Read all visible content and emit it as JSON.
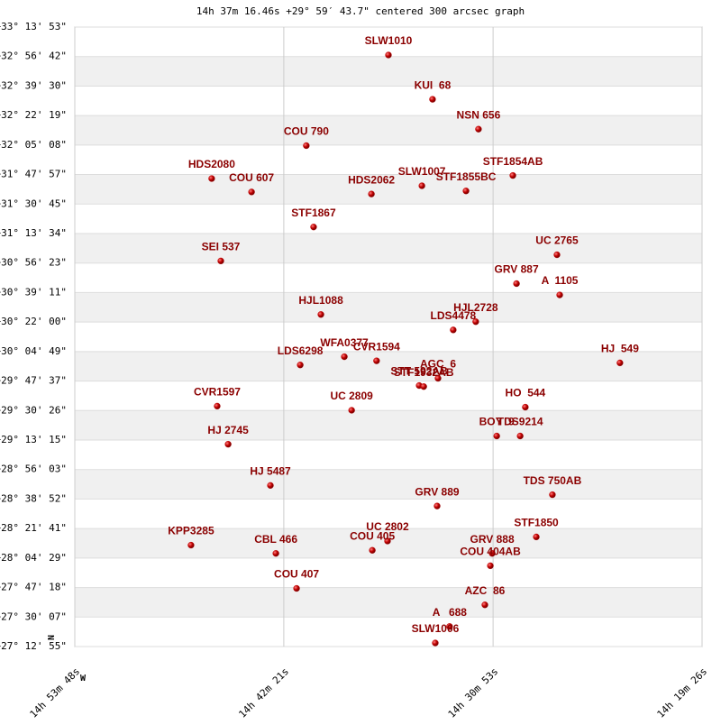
{
  "chart_data": {
    "type": "scatter",
    "title": "14h 37m 16.46s +29° 59′ 43.7\" centered 300 arcsec graph",
    "north_label": "N",
    "west_label": "W",
    "labels": [
      "SLW1010",
      "KUI  68",
      "NSN 656",
      "COU 790",
      "HDS2080",
      "COU 607",
      "SLW1007",
      "STF1855BC",
      "STF1854AB",
      "HDS2062",
      "STF1867",
      "SEI 537",
      "UC 2765",
      "GRV 887",
      "A  1105",
      "HJL1088",
      "HJL2728",
      "LDS4478",
      "LDS6298",
      "WFA0377",
      "CVR1594",
      "HJ  549",
      "AGC  6",
      "STT 592AB",
      "STF1932AB",
      "UC 2809",
      "CVR1597",
      "HO  544",
      "BOY  9",
      "TDS9214",
      "HJ 2745",
      "HJ 5487",
      "TDS 750AB",
      "GRV 889",
      "KPP3285",
      "CBL 466",
      "UC 2802",
      "COU 405",
      "STF1850",
      "GRV 888",
      "COU 404AB",
      "COU 407",
      "AZC  86",
      "A   688",
      "SLW1006"
    ],
    "x": [
      2197,
      2052,
      1901,
      2467,
      2778,
      2647,
      2087,
      1942,
      1788,
      2253,
      2443,
      2748,
      1643,
      1776,
      1634,
      2419,
      1910,
      1984,
      2487,
      2342,
      2236,
      1436,
      2034,
      2096,
      2081,
      2318,
      2760,
      1747,
      1841,
      1764,
      2724,
      2585,
      1658,
      2037,
      2846,
      2567,
      2200,
      2250,
      1711,
      1856,
      1862,
      2499,
      1880,
      1996,
      2043
    ],
    "y": [
      32.96,
      32.53,
      32.24,
      32.08,
      31.76,
      31.63,
      31.69,
      31.64,
      31.79,
      31.61,
      31.29,
      30.96,
      31.02,
      30.74,
      30.63,
      30.44,
      30.37,
      30.29,
      29.95,
      30.03,
      29.99,
      29.97,
      29.82,
      29.75,
      29.74,
      29.51,
      29.55,
      29.54,
      29.26,
      29.26,
      29.18,
      28.78,
      28.69,
      28.58,
      28.2,
      28.12,
      28.24,
      28.15,
      28.28,
      28.12,
      28.0,
      27.78,
      27.62,
      27.41,
      27.25
    ],
    "color": "#c00000",
    "xlim": [
      3228,
      1166
    ],
    "xticks": [
      {
        "value": 3228,
        "label": "14h 53m 48s"
      },
      {
        "value": 2541,
        "label": "14h 42m 21s"
      },
      {
        "value": 1853,
        "label": "14h 30m 53s"
      },
      {
        "value": 1166,
        "label": "14h 19m 26s"
      }
    ],
    "ylim": [
      27.2153,
      33.2314
    ],
    "yticks": [
      {
        "value": 33.2314,
        "label": "+33° 13' 53\""
      },
      {
        "value": 32.945,
        "label": "+32° 56' 42\""
      },
      {
        "value": 32.6583,
        "label": "+32° 39' 30\""
      },
      {
        "value": 32.3719,
        "label": "+32° 22' 19\""
      },
      {
        "value": 32.0856,
        "label": "+32° 05' 08\""
      },
      {
        "value": 31.7992,
        "label": "+31° 47' 57\""
      },
      {
        "value": 31.5125,
        "label": "+31° 30' 45\""
      },
      {
        "value": 31.2261,
        "label": "+31° 13' 34\""
      },
      {
        "value": 30.9397,
        "label": "+30° 56' 23\""
      },
      {
        "value": 30.6531,
        "label": "+30° 39' 11\""
      },
      {
        "value": 30.3667,
        "label": "+30° 22' 00\""
      },
      {
        "value": 30.0803,
        "label": "+30° 04' 49\""
      },
      {
        "value": 29.7936,
        "label": "+29° 47' 37\""
      },
      {
        "value": 29.5072,
        "label": "+29° 30' 26\""
      },
      {
        "value": 29.2208,
        "label": "+29° 13' 15\""
      },
      {
        "value": 28.9342,
        "label": "+28° 56' 03\""
      },
      {
        "value": 28.6478,
        "label": "+28° 38' 52\""
      },
      {
        "value": 28.3611,
        "label": "+28° 21' 41\""
      },
      {
        "value": 28.0747,
        "label": "+28° 04' 29\""
      },
      {
        "value": 27.7883,
        "label": "+27° 47' 18\""
      },
      {
        "value": 27.5019,
        "label": "+27° 30' 07\""
      },
      {
        "value": 27.2153,
        "label": "+27° 12' 55\""
      }
    ]
  }
}
